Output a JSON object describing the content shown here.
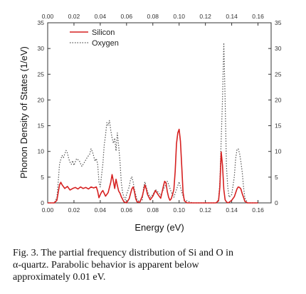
{
  "chart_data": {
    "type": "line",
    "xlabel": "Energy (eV)",
    "ylabel": "Phonon Density of States (1/eV)",
    "xlim": [
      0.0,
      0.17
    ],
    "ylim": [
      0,
      35
    ],
    "x_ticks": [
      "0.00",
      "0.02",
      "0.04",
      "0.06",
      "0.08",
      "0.10",
      "0.12",
      "0.14",
      "0.16"
    ],
    "y_ticks": [
      "0",
      "5",
      "10",
      "15",
      "20",
      "25",
      "30",
      "35"
    ],
    "legend_position": "top-left",
    "series": [
      {
        "name": "Silicon",
        "color": "#d62020",
        "style": "solid",
        "x": [
          0.0,
          0.005,
          0.007,
          0.008,
          0.009,
          0.01,
          0.011,
          0.013,
          0.015,
          0.017,
          0.019,
          0.021,
          0.023,
          0.025,
          0.027,
          0.029,
          0.031,
          0.033,
          0.035,
          0.037,
          0.038,
          0.039,
          0.04,
          0.041,
          0.042,
          0.044,
          0.046,
          0.048,
          0.049,
          0.05,
          0.051,
          0.052,
          0.053,
          0.054,
          0.055,
          0.056,
          0.058,
          0.06,
          0.062,
          0.064,
          0.065,
          0.066,
          0.067,
          0.068,
          0.07,
          0.072,
          0.074,
          0.075,
          0.076,
          0.077,
          0.078,
          0.08,
          0.082,
          0.084,
          0.086,
          0.088,
          0.089,
          0.09,
          0.091,
          0.092,
          0.093,
          0.094,
          0.095,
          0.096,
          0.097,
          0.098,
          0.099,
          0.1,
          0.101,
          0.102,
          0.103,
          0.104,
          0.106,
          0.11,
          0.12,
          0.128,
          0.13,
          0.131,
          0.132,
          0.133,
          0.134,
          0.135,
          0.136,
          0.137,
          0.138,
          0.14,
          0.142,
          0.144,
          0.145,
          0.146,
          0.147,
          0.148,
          0.149,
          0.15,
          0.152,
          0.16
        ],
        "y": [
          0,
          0,
          0.5,
          2.0,
          3.5,
          4.0,
          3.5,
          2.8,
          3.2,
          2.5,
          2.8,
          3.0,
          2.7,
          3.1,
          2.8,
          3.0,
          2.7,
          3.1,
          2.9,
          3.1,
          2.3,
          1.0,
          1.6,
          2.1,
          2.4,
          1.3,
          2.0,
          4.0,
          5.5,
          4.2,
          2.8,
          4.6,
          3.4,
          2.3,
          1.9,
          1.2,
          0.2,
          0.0,
          0.8,
          2.7,
          3.1,
          2.2,
          0.8,
          0.2,
          0.1,
          1.3,
          3.5,
          2.7,
          1.6,
          1.1,
          0.6,
          1.3,
          2.4,
          1.6,
          0.9,
          3.2,
          4.2,
          3.9,
          2.2,
          1.1,
          0.5,
          0.8,
          1.6,
          2.6,
          6.1,
          11.5,
          13.6,
          14.3,
          12.0,
          7.1,
          2.0,
          0.4,
          0.0,
          0.0,
          0.0,
          0.0,
          0.4,
          3.1,
          9.9,
          7.3,
          2.6,
          0.6,
          0.2,
          0.0,
          0.1,
          0.5,
          1.2,
          2.7,
          3.1,
          3.0,
          2.7,
          1.8,
          1.1,
          0.3,
          0.0,
          0.0
        ]
      },
      {
        "name": "Oxygen",
        "color": "#555555",
        "style": "dotted",
        "x": [
          0.0,
          0.005,
          0.007,
          0.008,
          0.009,
          0.01,
          0.011,
          0.012,
          0.013,
          0.014,
          0.015,
          0.016,
          0.017,
          0.018,
          0.019,
          0.02,
          0.022,
          0.024,
          0.026,
          0.028,
          0.03,
          0.032,
          0.033,
          0.034,
          0.035,
          0.036,
          0.037,
          0.038,
          0.039,
          0.04,
          0.042,
          0.043,
          0.044,
          0.045,
          0.046,
          0.047,
          0.048,
          0.049,
          0.05,
          0.051,
          0.052,
          0.053,
          0.054,
          0.055,
          0.056,
          0.057,
          0.058,
          0.059,
          0.06,
          0.062,
          0.063,
          0.064,
          0.065,
          0.066,
          0.067,
          0.068,
          0.07,
          0.072,
          0.073,
          0.074,
          0.075,
          0.076,
          0.078,
          0.08,
          0.082,
          0.084,
          0.086,
          0.088,
          0.09,
          0.091,
          0.092,
          0.094,
          0.096,
          0.098,
          0.1,
          0.102,
          0.104,
          0.11,
          0.12,
          0.128,
          0.13,
          0.131,
          0.132,
          0.133,
          0.134,
          0.135,
          0.136,
          0.137,
          0.138,
          0.14,
          0.142,
          0.143,
          0.144,
          0.145,
          0.146,
          0.147,
          0.148,
          0.149,
          0.15,
          0.152,
          0.16
        ],
        "y": [
          0,
          0,
          1.0,
          4.0,
          7.5,
          8.5,
          9.2,
          8.8,
          9.5,
          10.2,
          9.7,
          8.6,
          7.9,
          7.5,
          8.2,
          7.3,
          8.6,
          8.2,
          7.1,
          7.9,
          8.8,
          9.5,
          10.5,
          10.0,
          9.1,
          8.1,
          8.6,
          7.6,
          4.1,
          3.1,
          7.6,
          11.2,
          13.1,
          15.6,
          15.1,
          16.0,
          14.1,
          12.6,
          11.6,
          12.6,
          10.1,
          13.6,
          11.1,
          8.1,
          4.0,
          2.0,
          1.1,
          0.6,
          1.6,
          3.1,
          4.5,
          5.1,
          4.1,
          2.6,
          1.6,
          0.6,
          0.2,
          0.6,
          3.1,
          4.1,
          3.1,
          2.1,
          1.1,
          1.6,
          2.6,
          2.1,
          1.5,
          2.6,
          3.6,
          4.2,
          3.6,
          2.1,
          1.1,
          2.6,
          4.1,
          2.1,
          0.6,
          0.0,
          0.0,
          0.0,
          0.6,
          4.1,
          12.1,
          20.1,
          31.1,
          20.0,
          7.1,
          3.1,
          1.1,
          1.6,
          5.1,
          8.6,
          10.3,
          10.5,
          9.6,
          8.0,
          6.0,
          3.1,
          1.0,
          0.0,
          0.0
        ]
      }
    ]
  },
  "caption": {
    "line1": "Fig. 3.  The partial frequency distribution of Si and O in",
    "line2": "α-quartz.  Parabolic behavior is apparent below",
    "line3": "approximately 0.01 eV."
  }
}
